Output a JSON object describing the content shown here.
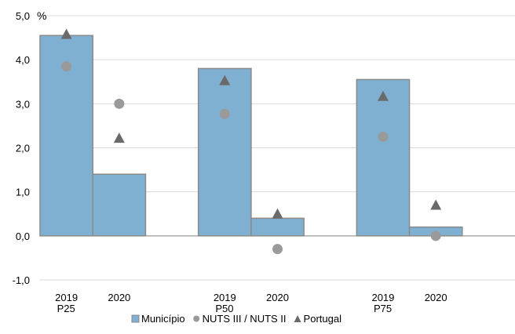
{
  "chart_data": {
    "type": "bar",
    "y_unit": "%",
    "ylim": [
      -1,
      5
    ],
    "y_ticks": [
      "-1,0",
      "0,0",
      "1,0",
      "2,0",
      "3,0",
      "4,0",
      "5,0"
    ],
    "y_tick_values": [
      -1,
      0,
      1,
      2,
      3,
      4,
      5
    ],
    "groups": [
      {
        "label": "P25",
        "categories": [
          "2019",
          "2020"
        ]
      },
      {
        "label": "P50",
        "categories": [
          "2019",
          "2020"
        ]
      },
      {
        "label": "P75",
        "categories": [
          "2019",
          "2020"
        ]
      }
    ],
    "series": [
      {
        "name": "Município",
        "kind": "bar",
        "values": [
          4.55,
          1.4,
          3.8,
          0.4,
          3.55,
          0.2
        ]
      },
      {
        "name": "NUTS III / NUTS II",
        "kind": "circle",
        "values": [
          3.85,
          3.0,
          2.77,
          -0.3,
          2.25,
          0.0
        ]
      },
      {
        "name": "Portugal",
        "kind": "triangle",
        "values": [
          4.58,
          2.22,
          3.53,
          0.5,
          3.17,
          0.7
        ]
      }
    ],
    "grid": "horizontal",
    "legend": "bottom",
    "colors": {
      "bar_fill": "#7fb0d2",
      "bar_stroke": "#8a8a8a",
      "circle": "#9a9a9a",
      "triangle": "#6a6a6a",
      "grid": "#d9d9d9"
    }
  }
}
